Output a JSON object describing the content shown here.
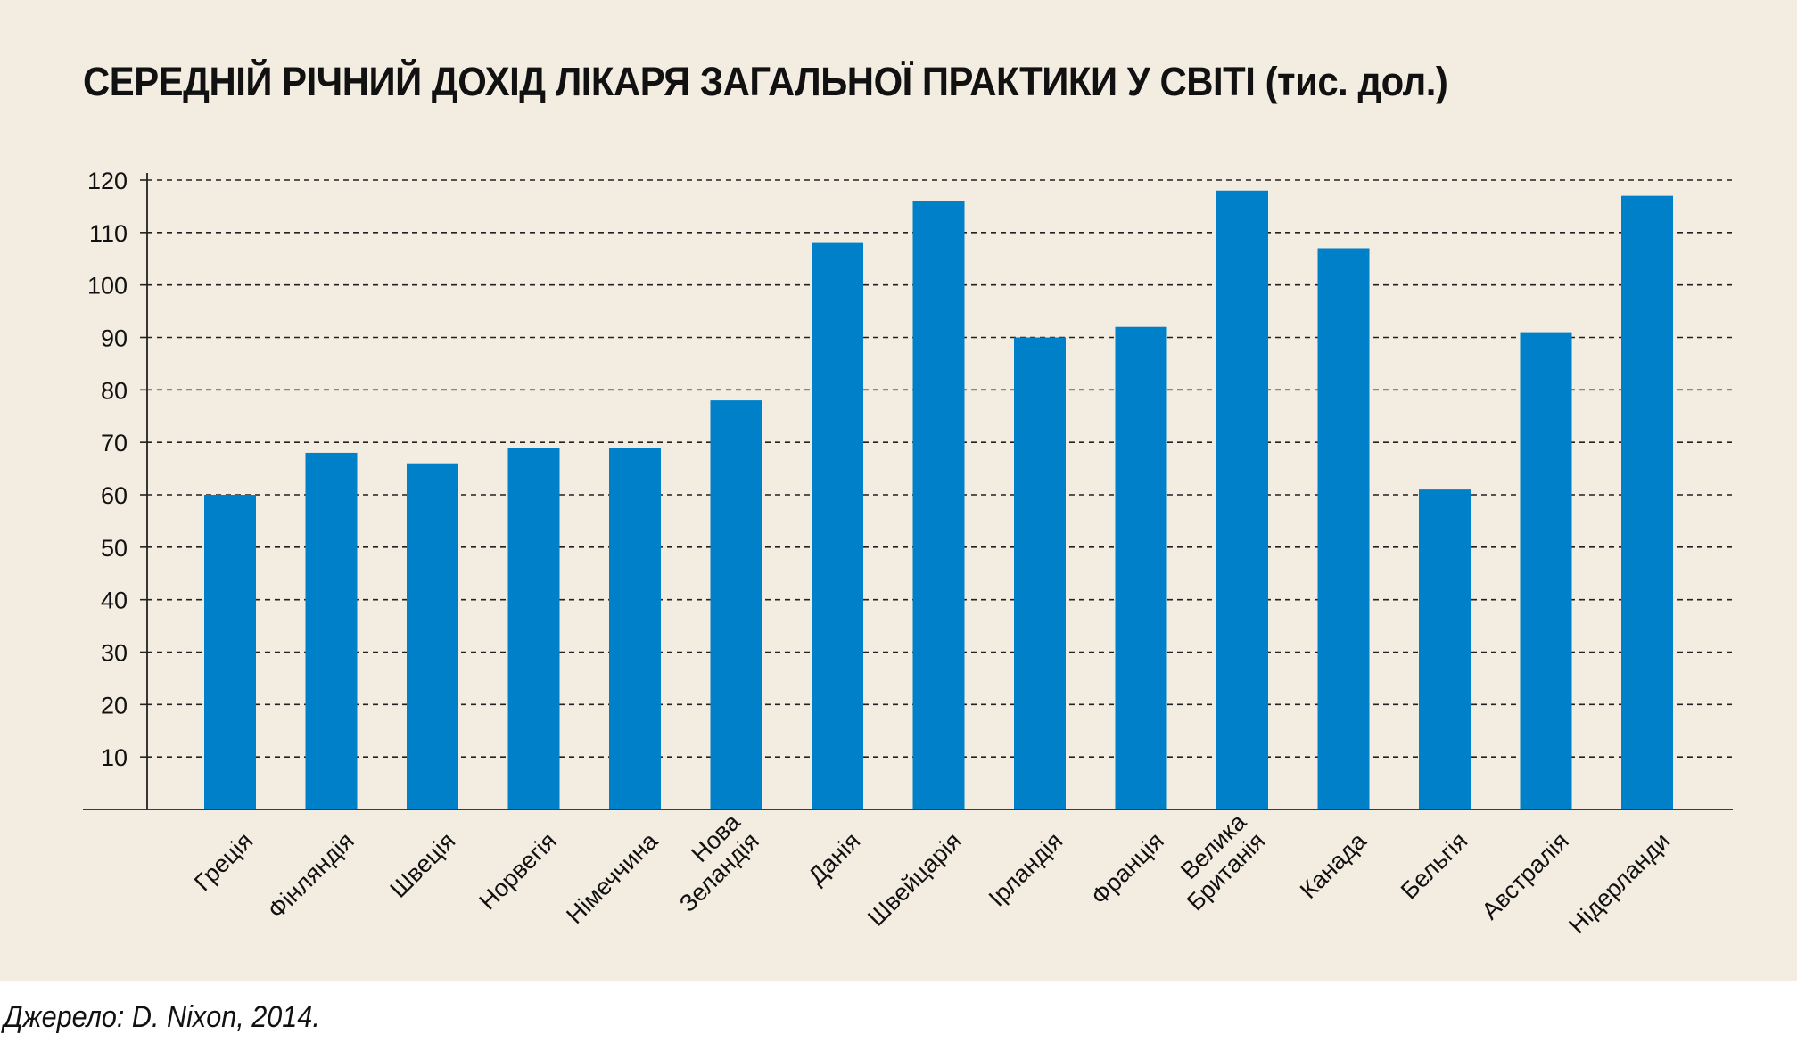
{
  "title": "СЕРЕДНІЙ РІЧНИЙ ДОХІД ЛІКАРЯ ЗАГАЛЬНОЇ ПРАКТИКИ У СВІТІ (тис. дол.)",
  "source": "Джерело: D. Nixon, 2014.",
  "colors": {
    "bar": "#0080c8",
    "background": "#f2ece1",
    "grid": "#222222"
  },
  "chart_data": {
    "type": "bar",
    "title": "СЕРЕДНІЙ РІЧНИЙ ДОХІД ЛІКАРЯ ЗАГАЛЬНОЇ ПРАКТИКИ У СВІТІ (тис. дол.)",
    "categories": [
      "Греція",
      "Фінляндія",
      "Швеція",
      "Норвегія",
      "Німеччина",
      "Нова Зеландія",
      "Данія",
      "Швейцарія",
      "Ірландія",
      "Франція",
      "Велика Британія",
      "Канада",
      "Бельгія",
      "Австралія",
      "Нідерланди"
    ],
    "category_lines": [
      [
        "Греція"
      ],
      [
        "Фінляндія"
      ],
      [
        "Швеція"
      ],
      [
        "Норвегія"
      ],
      [
        "Німеччина"
      ],
      [
        "Нова",
        "Зеландія"
      ],
      [
        "Данія"
      ],
      [
        "Швейцарія"
      ],
      [
        "Ірландія"
      ],
      [
        "Франція"
      ],
      [
        "Велика",
        "Британія"
      ],
      [
        "Канада"
      ],
      [
        "Бельгія"
      ],
      [
        "Австралія"
      ],
      [
        "Нідерланди"
      ]
    ],
    "values": [
      60,
      68,
      66,
      69,
      69,
      78,
      108,
      116,
      90,
      92,
      118,
      107,
      61,
      91,
      117
    ],
    "yticks": [
      10,
      20,
      30,
      40,
      50,
      60,
      70,
      80,
      90,
      100,
      110,
      120
    ],
    "ylim": [
      0,
      120
    ],
    "xlabel": "",
    "ylabel": "",
    "grid": true,
    "grid_style": "dashed"
  }
}
